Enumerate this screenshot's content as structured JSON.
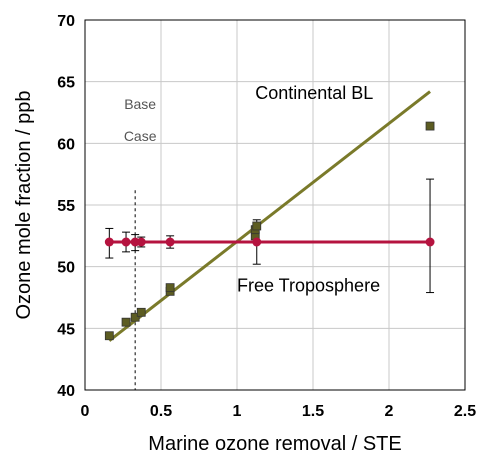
{
  "chart_data": {
    "type": "scatter",
    "xlabel": "Marine ozone removal / STE",
    "ylabel": "Ozone mole fraction / ppb",
    "xlim": [
      0,
      2.5
    ],
    "ylim": [
      40,
      70
    ],
    "x_ticks": [
      "0",
      "0.5",
      "1",
      "1.5",
      "2",
      "2.5"
    ],
    "y_ticks": [
      "40",
      "45",
      "50",
      "55",
      "60",
      "65",
      "70"
    ],
    "grid": true,
    "colors": {
      "free_troposphere": "#B5133F",
      "continental_bl": "#7A7A2A",
      "continental_bl_marker": "#5C5C22",
      "grid": "#C8C8C8"
    },
    "series": [
      {
        "name": "Free Troposphere",
        "marker": "circle",
        "points": [
          {
            "x": 0.16,
            "y": 52.0,
            "err_low": 50.7,
            "err_high": 53.1
          },
          {
            "x": 0.27,
            "y": 52.0,
            "err_low": 51.2,
            "err_high": 52.8
          },
          {
            "x": 0.33,
            "y": 52.0,
            "err_low": 51.3,
            "err_high": 52.6
          },
          {
            "x": 0.37,
            "y": 52.0,
            "err_low": 51.6,
            "err_high": 52.4
          },
          {
            "x": 0.56,
            "y": 52.0,
            "err_low": 51.5,
            "err_high": 52.5
          },
          {
            "x": 1.13,
            "y": 52.0,
            "err_low": 50.2,
            "err_high": 53.8
          },
          {
            "x": 2.27,
            "y": 52.0,
            "err_low": 47.9,
            "err_high": 57.1
          }
        ],
        "fit": {
          "x": [
            0.16,
            2.27
          ],
          "y": [
            52.0,
            52.0
          ]
        }
      },
      {
        "name": "Continental BL",
        "marker": "square",
        "points": [
          {
            "x": 0.16,
            "y": 44.4
          },
          {
            "x": 0.27,
            "y": 45.5
          },
          {
            "x": 0.33,
            "y": 45.9
          },
          {
            "x": 0.37,
            "y": 46.3
          },
          {
            "x": 0.56,
            "y": 48.0
          },
          {
            "x": 0.56,
            "y": 48.3
          },
          {
            "x": 1.12,
            "y": 52.5
          },
          {
            "x": 1.12,
            "y": 53.0
          },
          {
            "x": 1.13,
            "y": 53.3
          },
          {
            "x": 2.27,
            "y": 61.4
          }
        ],
        "fit": {
          "x": [
            0.16,
            2.27
          ],
          "y": [
            44.0,
            64.2
          ]
        }
      }
    ],
    "annotations": {
      "continental": "Continental BL",
      "free": "Free Troposphere",
      "base_line1": "Base",
      "base_line2": "Case"
    },
    "base_case_x": 0.33
  }
}
